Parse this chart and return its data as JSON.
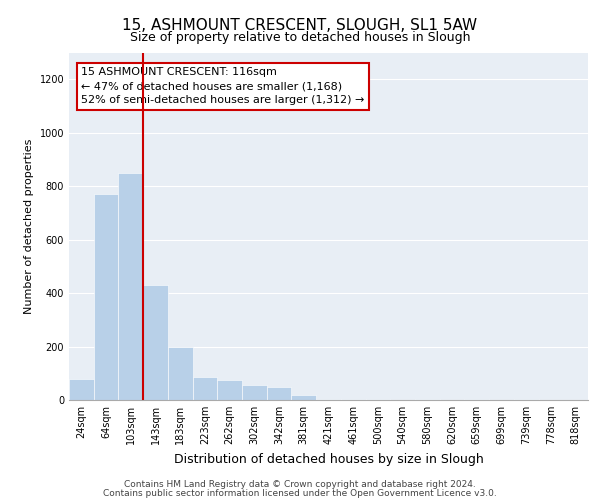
{
  "title": "15, ASHMOUNT CRESCENT, SLOUGH, SL1 5AW",
  "subtitle": "Size of property relative to detached houses in Slough",
  "xlabel": "Distribution of detached houses by size in Slough",
  "ylabel": "Number of detached properties",
  "categories": [
    "24sqm",
    "64sqm",
    "103sqm",
    "143sqm",
    "183sqm",
    "223sqm",
    "262sqm",
    "302sqm",
    "342sqm",
    "381sqm",
    "421sqm",
    "461sqm",
    "500sqm",
    "540sqm",
    "580sqm",
    "620sqm",
    "659sqm",
    "699sqm",
    "739sqm",
    "778sqm",
    "818sqm"
  ],
  "values": [
    80,
    770,
    850,
    430,
    200,
    85,
    75,
    55,
    50,
    20,
    5,
    5,
    5,
    0,
    5,
    0,
    5,
    0,
    5,
    0,
    0
  ],
  "bar_color": "#b8d0e8",
  "red_line_x": 2.5,
  "annotation_text": "15 ASHMOUNT CRESCENT: 116sqm\n← 47% of detached houses are smaller (1,168)\n52% of semi-detached houses are larger (1,312) →",
  "annotation_box_edgecolor": "#cc0000",
  "ylim": [
    0,
    1300
  ],
  "yticks": [
    0,
    200,
    400,
    600,
    800,
    1000,
    1200
  ],
  "background_color": "#e8eef5",
  "footer_line1": "Contains HM Land Registry data © Crown copyright and database right 2024.",
  "footer_line2": "Contains public sector information licensed under the Open Government Licence v3.0.",
  "title_fontsize": 11,
  "subtitle_fontsize": 9,
  "xlabel_fontsize": 9,
  "ylabel_fontsize": 8,
  "tick_fontsize": 7,
  "annotation_fontsize": 8,
  "footer_fontsize": 6.5
}
